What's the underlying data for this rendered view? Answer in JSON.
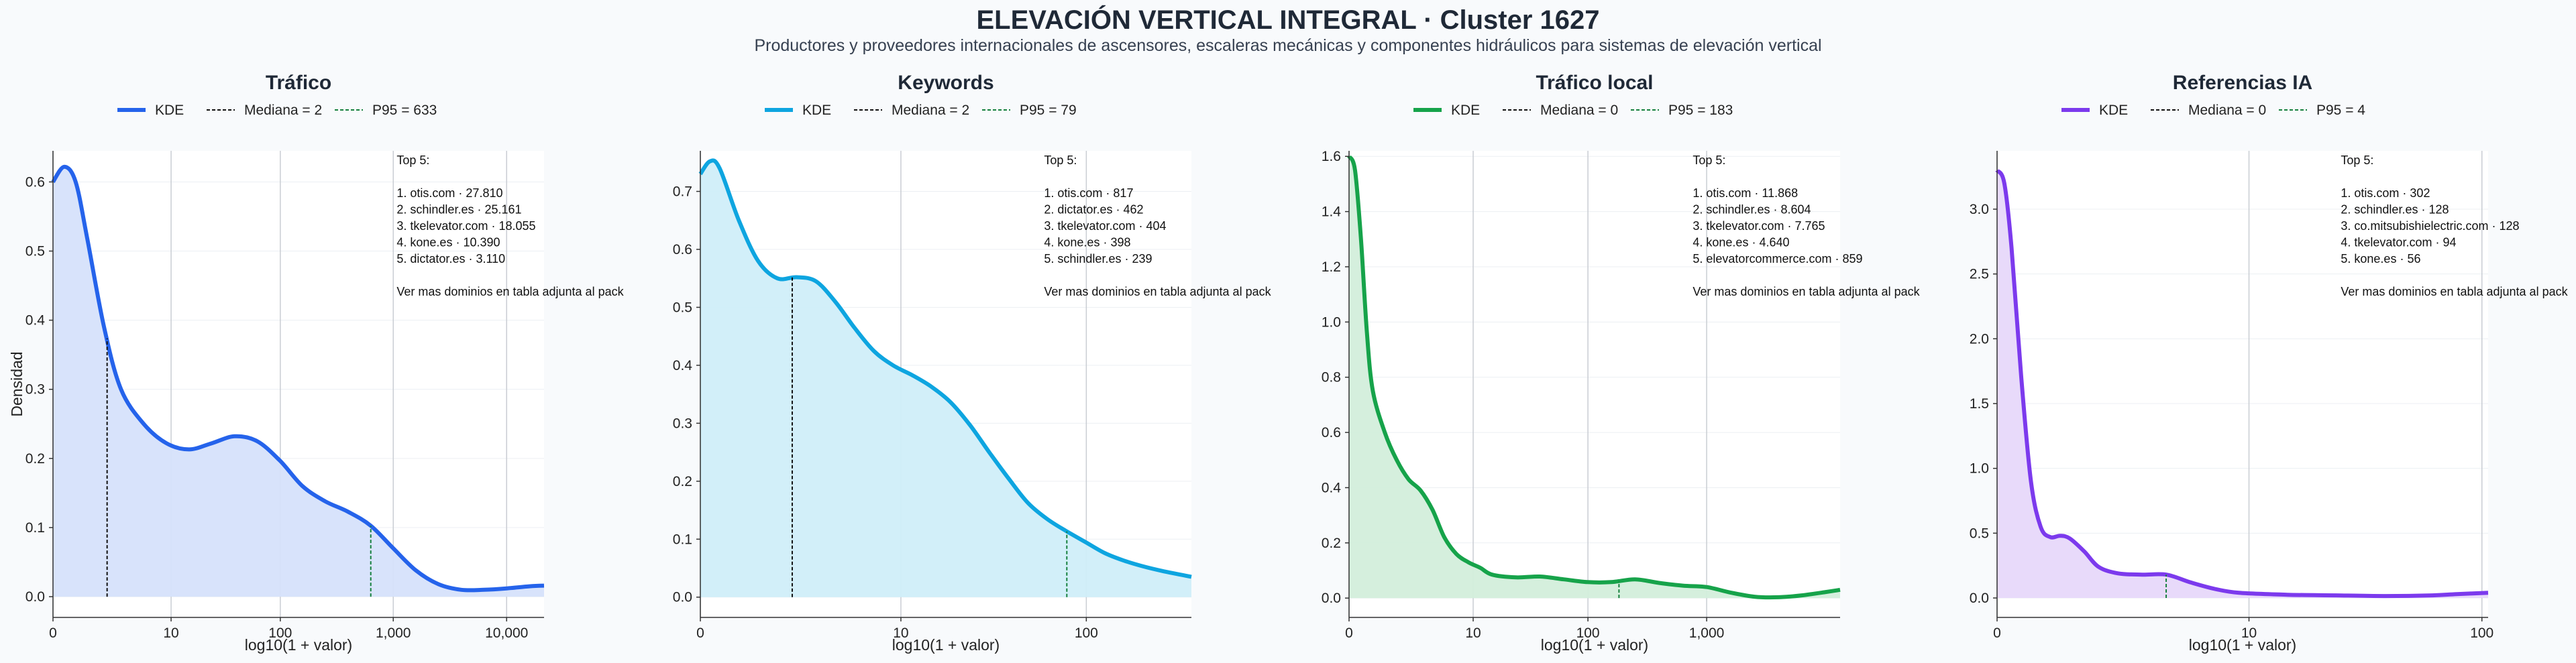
{
  "title": "ELEVACIÓN VERTICAL INTEGRAL · Cluster 1627",
  "subtitle": "Productores y proveedores internacionales de ascensores, escaleras mecánicas y componentes hidráulicos para sistemas de elevación vertical",
  "chart_data": [
    {
      "type": "area",
      "title": "Tráfico",
      "color": "#2563eb",
      "fill": "#d6e2fb",
      "xlabel": "log10(1 + valor)",
      "ylabel": "Densidad",
      "xlim": [
        0,
        4.33
      ],
      "ylim": [
        -0.03,
        0.645
      ],
      "xticks": [
        0,
        1.0414,
        2.0043,
        3.0004,
        4.0
      ],
      "xtick_labels": [
        "0",
        "10",
        "100",
        "1,000",
        "10,000"
      ],
      "yticks": [
        0,
        0.1,
        0.2,
        0.3,
        0.4,
        0.5,
        0.6
      ],
      "ytick_labels": [
        "0.0",
        "0.1",
        "0.2",
        "0.3",
        "0.4",
        "0.5",
        "0.6"
      ],
      "legend": [
        "KDE",
        "Mediana = 2",
        "P95 = 633"
      ],
      "median_x": 0.4771,
      "p95_x": 2.8021,
      "kde": {
        "x": [
          0,
          0.1,
          0.2,
          0.3,
          0.45,
          0.6,
          0.8,
          1.0,
          1.2,
          1.4,
          1.6,
          1.8,
          2.0,
          2.2,
          2.4,
          2.6,
          2.8,
          3.0,
          3.2,
          3.4,
          3.6,
          3.8,
          4.0,
          4.2,
          4.33
        ],
        "y": [
          0.6,
          0.622,
          0.6,
          0.52,
          0.39,
          0.3,
          0.25,
          0.222,
          0.213,
          0.222,
          0.232,
          0.225,
          0.197,
          0.16,
          0.138,
          0.123,
          0.103,
          0.07,
          0.038,
          0.018,
          0.01,
          0.01,
          0.012,
          0.015,
          0.016
        ]
      },
      "annotation": [
        "Top 5:",
        "",
        "1. otis.com · 27.810",
        "2. schindler.es · 25.161",
        "3. tkelevator.com · 18.055",
        "4. kone.es · 10.390",
        "5. dictator.es · 3.110",
        "",
        "Ver mas dominios en tabla adjunta al pack"
      ]
    },
    {
      "type": "area",
      "title": "Keywords",
      "color": "#0ea5e0",
      "fill": "#d0eef9",
      "xlabel": "log10(1 + valor)",
      "ylabel": "",
      "xlim": [
        0,
        2.55
      ],
      "ylim": [
        -0.035,
        0.77
      ],
      "xticks": [
        0,
        1.0414,
        2.0043
      ],
      "xtick_labels": [
        "0",
        "10",
        "100"
      ],
      "yticks": [
        0,
        0.1,
        0.2,
        0.3,
        0.4,
        0.5,
        0.6,
        0.7
      ],
      "ytick_labels": [
        "0.0",
        "0.1",
        "0.2",
        "0.3",
        "0.4",
        "0.5",
        "0.6",
        "0.7"
      ],
      "legend": [
        "KDE",
        "Mediana = 2",
        "P95 = 79"
      ],
      "median_x": 0.4771,
      "p95_x": 1.9031,
      "kde": {
        "x": [
          0,
          0.05,
          0.1,
          0.2,
          0.3,
          0.4,
          0.5,
          0.6,
          0.7,
          0.8,
          0.9,
          1.0,
          1.1,
          1.2,
          1.3,
          1.4,
          1.5,
          1.6,
          1.7,
          1.8,
          1.9,
          2.0,
          2.1,
          2.2,
          2.3,
          2.4,
          2.55
        ],
        "y": [
          0.73,
          0.752,
          0.74,
          0.65,
          0.58,
          0.55,
          0.552,
          0.545,
          0.51,
          0.465,
          0.425,
          0.4,
          0.383,
          0.363,
          0.336,
          0.297,
          0.25,
          0.205,
          0.163,
          0.135,
          0.114,
          0.095,
          0.076,
          0.063,
          0.053,
          0.045,
          0.035
        ]
      },
      "annotation": [
        "Top 5:",
        "",
        "1. otis.com · 817",
        "2. dictator.es · 462",
        "3. tkelevator.com · 404",
        "4. kone.es · 398",
        "5. schindler.es · 239",
        "",
        "Ver mas dominios en tabla adjunta al pack"
      ]
    },
    {
      "type": "area",
      "title": "Tráfico local",
      "color": "#16a34a",
      "fill": "#d3eedb",
      "xlabel": "log10(1 + valor)",
      "ylabel": "",
      "xlim": [
        0,
        4.12
      ],
      "ylim": [
        -0.07,
        1.62
      ],
      "xticks": [
        0,
        1.0414,
        2.0043,
        3.0004
      ],
      "xtick_labels": [
        "0",
        "10",
        "100",
        "1,000"
      ],
      "yticks": [
        0,
        0.2,
        0.4,
        0.6,
        0.8,
        1.0,
        1.2,
        1.4,
        1.6
      ],
      "ytick_labels": [
        "0.0",
        "0.2",
        "0.4",
        "0.6",
        "0.8",
        "1.0",
        "1.2",
        "1.4",
        "1.6"
      ],
      "legend": [
        "KDE",
        "Mediana = 0",
        "P95 = 183"
      ],
      "median_x": 0,
      "p95_x": 2.2648,
      "kde": {
        "x": [
          0,
          0.05,
          0.1,
          0.15,
          0.2,
          0.3,
          0.4,
          0.5,
          0.6,
          0.7,
          0.8,
          0.9,
          1.0,
          1.1,
          1.2,
          1.4,
          1.6,
          1.8,
          2.0,
          2.2,
          2.4,
          2.6,
          2.8,
          3.0,
          3.2,
          3.4,
          3.6,
          3.8,
          4.0,
          4.12
        ],
        "y": [
          1.6,
          1.55,
          1.3,
          0.96,
          0.75,
          0.6,
          0.5,
          0.43,
          0.39,
          0.32,
          0.22,
          0.16,
          0.13,
          0.11,
          0.085,
          0.075,
          0.078,
          0.068,
          0.058,
          0.058,
          0.068,
          0.055,
          0.045,
          0.04,
          0.02,
          0.005,
          0.003,
          0.01,
          0.022,
          0.03
        ]
      },
      "annotation": [
        "Top 5:",
        "",
        "1. otis.com · 11.868",
        "2. schindler.es · 8.604",
        "3. tkelevator.com · 7.765",
        "4. kone.es · 4.640",
        "5. elevatorcommerce.com · 859",
        "",
        "Ver mas dominios en tabla adjunta al pack"
      ]
    },
    {
      "type": "area",
      "title": "Referencias IA",
      "color": "#7c3aed",
      "fill": "#e7d8fa",
      "xlabel": "log10(1 + valor)",
      "ylabel": "",
      "xlim": [
        0,
        2.03
      ],
      "ylim": [
        -0.15,
        3.45
      ],
      "xticks": [
        0,
        1.0414,
        2.0043
      ],
      "xtick_labels": [
        "0",
        "10",
        "100"
      ],
      "yticks": [
        0,
        0.5,
        1.0,
        1.5,
        2.0,
        2.5,
        3.0
      ],
      "ytick_labels": [
        "0.0",
        "0.5",
        "1.0",
        "1.5",
        "2.0",
        "2.5",
        "3.0"
      ],
      "legend": [
        "KDE",
        "Mediana = 0",
        "P95 = 4"
      ],
      "median_x": 0,
      "p95_x": 0.699,
      "kde": {
        "x": [
          0,
          0.03,
          0.06,
          0.1,
          0.14,
          0.18,
          0.22,
          0.26,
          0.3,
          0.36,
          0.42,
          0.5,
          0.6,
          0.7,
          0.8,
          0.9,
          1.0,
          1.2,
          1.4,
          1.6,
          1.8,
          1.9,
          2.03
        ],
        "y": [
          3.3,
          3.2,
          2.7,
          1.7,
          0.9,
          0.55,
          0.47,
          0.48,
          0.46,
          0.36,
          0.24,
          0.19,
          0.18,
          0.18,
          0.12,
          0.07,
          0.04,
          0.025,
          0.02,
          0.015,
          0.02,
          0.03,
          0.04
        ]
      },
      "annotation": [
        "Top 5:",
        "",
        "1. otis.com · 302",
        "2. schindler.es · 128",
        "3. co.mitsubishielectric.com · 128",
        "4. tkelevator.com · 94",
        "5. kone.es · 56",
        "",
        "Ver mas dominios en tabla adjunta al pack"
      ]
    }
  ]
}
